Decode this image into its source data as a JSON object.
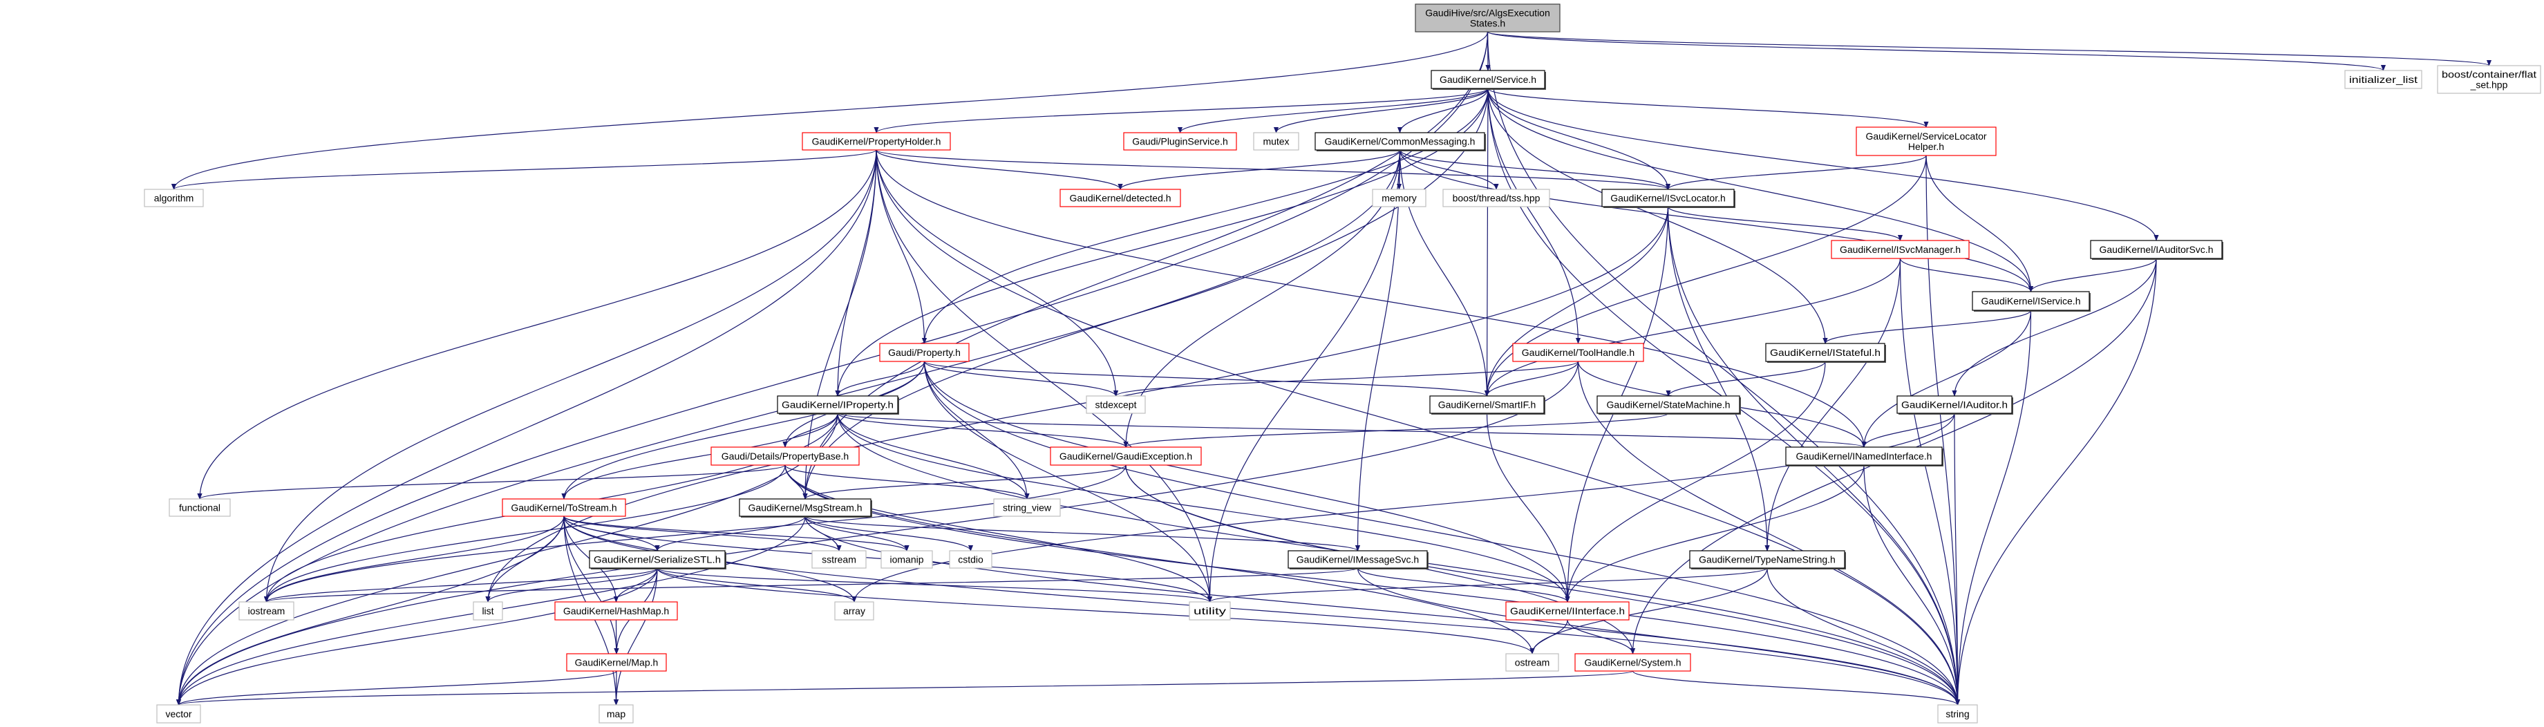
{
  "colors": {
    "edge": "#191970",
    "root_fill": "#bfbfbf",
    "documented_border": "#000000",
    "truncated_border": "#ff0000",
    "external_border": "#bfbfbf"
  },
  "nodes": [
    {
      "id": "root",
      "label": [
        "GaudiHive/src/AlgsExecution",
        "States.h"
      ],
      "kind": "root"
    },
    {
      "id": "service",
      "label": [
        "GaudiKernel/Service.h"
      ],
      "kind": "documented"
    },
    {
      "id": "propertyholder",
      "label": [
        "GaudiKernel/PropertyHolder.h"
      ],
      "kind": "truncated"
    },
    {
      "id": "pluginservice",
      "label": [
        "Gaudi/PluginService.h"
      ],
      "kind": "truncated"
    },
    {
      "id": "mutex",
      "label": [
        "mutex"
      ],
      "kind": "external"
    },
    {
      "id": "commonmessaging",
      "label": [
        "GaudiKernel/CommonMessaging.h"
      ],
      "kind": "documented"
    },
    {
      "id": "algorithm",
      "label": [
        "algorithm"
      ],
      "kind": "external"
    },
    {
      "id": "detected",
      "label": [
        "GaudiKernel/detected.h"
      ],
      "kind": "truncated"
    },
    {
      "id": "memory",
      "label": [
        "memory"
      ],
      "kind": "external"
    },
    {
      "id": "tss",
      "label": [
        "boost/thread/tss.hpp"
      ],
      "kind": "external"
    },
    {
      "id": "isvclocator",
      "label": [
        "GaudiKernel/ISvcLocator.h"
      ],
      "kind": "documented"
    },
    {
      "id": "servicelocatorhelper",
      "label": [
        "GaudiKernel/ServiceLocator",
        "Helper.h"
      ],
      "kind": "truncated"
    },
    {
      "id": "initializer_list",
      "label": [
        "initializer_list"
      ],
      "kind": "external"
    },
    {
      "id": "flat_set",
      "label": [
        "boost/container/flat",
        "_set.hpp"
      ],
      "kind": "external"
    },
    {
      "id": "isvcmanager",
      "label": [
        "GaudiKernel/ISvcManager.h"
      ],
      "kind": "truncated"
    },
    {
      "id": "iauditorsvc",
      "label": [
        "GaudiKernel/IAuditorSvc.h"
      ],
      "kind": "documented"
    },
    {
      "id": "iservice",
      "label": [
        "GaudiKernel/IService.h"
      ],
      "kind": "documented"
    },
    {
      "id": "istateful",
      "label": [
        "GaudiKernel/IStateful.h"
      ],
      "kind": "documented"
    },
    {
      "id": "property",
      "label": [
        "Gaudi/Property.h"
      ],
      "kind": "truncated"
    },
    {
      "id": "toolhandle",
      "label": [
        "GaudiKernel/ToolHandle.h"
      ],
      "kind": "truncated"
    },
    {
      "id": "iproperty",
      "label": [
        "GaudiKernel/IProperty.h"
      ],
      "kind": "documented"
    },
    {
      "id": "stdexcept",
      "label": [
        "stdexcept"
      ],
      "kind": "external"
    },
    {
      "id": "smartif",
      "label": [
        "GaudiKernel/SmartIF.h"
      ],
      "kind": "documented"
    },
    {
      "id": "statemachine",
      "label": [
        "GaudiKernel/StateMachine.h"
      ],
      "kind": "documented"
    },
    {
      "id": "iauditor",
      "label": [
        "GaudiKernel/IAuditor.h"
      ],
      "kind": "documented"
    },
    {
      "id": "propertybase",
      "label": [
        "Gaudi/Details/PropertyBase.h"
      ],
      "kind": "truncated"
    },
    {
      "id": "gaudiexception",
      "label": [
        "GaudiKernel/GaudiException.h"
      ],
      "kind": "truncated"
    },
    {
      "id": "inamedinterface",
      "label": [
        "GaudiKernel/INamedInterface.h"
      ],
      "kind": "documented"
    },
    {
      "id": "functional",
      "label": [
        "functional"
      ],
      "kind": "external"
    },
    {
      "id": "tostream",
      "label": [
        "GaudiKernel/ToStream.h"
      ],
      "kind": "truncated"
    },
    {
      "id": "msgstream",
      "label": [
        "GaudiKernel/MsgStream.h"
      ],
      "kind": "documented"
    },
    {
      "id": "string_view",
      "label": [
        "string_view"
      ],
      "kind": "external"
    },
    {
      "id": "serializestl",
      "label": [
        "GaudiKernel/SerializeSTL.h"
      ],
      "kind": "documented"
    },
    {
      "id": "sstream",
      "label": [
        "sstream"
      ],
      "kind": "external"
    },
    {
      "id": "iomanip",
      "label": [
        "iomanip"
      ],
      "kind": "external"
    },
    {
      "id": "cstdio",
      "label": [
        "cstdio"
      ],
      "kind": "external"
    },
    {
      "id": "imessagesvc",
      "label": [
        "GaudiKernel/IMessageSvc.h"
      ],
      "kind": "documented"
    },
    {
      "id": "typenamestring",
      "label": [
        "GaudiKernel/TypeNameString.h"
      ],
      "kind": "documented"
    },
    {
      "id": "iostream",
      "label": [
        "iostream"
      ],
      "kind": "external"
    },
    {
      "id": "list",
      "label": [
        "list"
      ],
      "kind": "external"
    },
    {
      "id": "hashmap",
      "label": [
        "GaudiKernel/HashMap.h"
      ],
      "kind": "truncated"
    },
    {
      "id": "array",
      "label": [
        "array"
      ],
      "kind": "external"
    },
    {
      "id": "utility",
      "label": [
        "utility"
      ],
      "kind": "external"
    },
    {
      "id": "interface",
      "label": [
        "GaudiKernel/IInterface.h"
      ],
      "kind": "truncated"
    },
    {
      "id": "map_h",
      "label": [
        "GaudiKernel/Map.h"
      ],
      "kind": "truncated"
    },
    {
      "id": "ostream",
      "label": [
        "ostream"
      ],
      "kind": "external"
    },
    {
      "id": "system",
      "label": [
        "GaudiKernel/System.h"
      ],
      "kind": "truncated"
    },
    {
      "id": "vector",
      "label": [
        "vector"
      ],
      "kind": "external"
    },
    {
      "id": "map",
      "label": [
        "map"
      ],
      "kind": "external"
    },
    {
      "id": "string",
      "label": [
        "string"
      ],
      "kind": "external"
    }
  ],
  "edges": [
    [
      "root",
      "service"
    ],
    [
      "root",
      "vector"
    ],
    [
      "root",
      "algorithm"
    ],
    [
      "root",
      "msgstream"
    ],
    [
      "root",
      "initializer_list"
    ],
    [
      "root",
      "flat_set"
    ],
    [
      "root",
      "string"
    ],
    [
      "service",
      "propertyholder"
    ],
    [
      "service",
      "pluginservice"
    ],
    [
      "service",
      "mutex"
    ],
    [
      "service",
      "commonmessaging"
    ],
    [
      "service",
      "isvclocator"
    ],
    [
      "service",
      "servicelocatorhelper"
    ],
    [
      "service",
      "iservice"
    ],
    [
      "service",
      "iauditorsvc"
    ],
    [
      "service",
      "iproperty"
    ],
    [
      "service",
      "property"
    ],
    [
      "service",
      "smartif"
    ],
    [
      "service",
      "toolhandle"
    ],
    [
      "service",
      "istateful"
    ],
    [
      "service",
      "string"
    ],
    [
      "service",
      "vector"
    ],
    [
      "propertyholder",
      "algorithm"
    ],
    [
      "propertyholder",
      "detected"
    ],
    [
      "propertyholder",
      "isvclocator"
    ],
    [
      "propertyholder",
      "property"
    ],
    [
      "propertyholder",
      "iproperty"
    ],
    [
      "propertyholder",
      "stdexcept"
    ],
    [
      "propertyholder",
      "utility"
    ],
    [
      "propertyholder",
      "iostream"
    ],
    [
      "propertyholder",
      "functional"
    ],
    [
      "propertyholder",
      "vector"
    ],
    [
      "propertyholder",
      "string"
    ],
    [
      "propertyholder",
      "msgstream"
    ],
    [
      "propertyholder",
      "inamedinterface"
    ],
    [
      "commonmessaging",
      "detected"
    ],
    [
      "commonmessaging",
      "memory"
    ],
    [
      "commonmessaging",
      "tss"
    ],
    [
      "commonmessaging",
      "isvclocator"
    ],
    [
      "commonmessaging",
      "iservice"
    ],
    [
      "commonmessaging",
      "imessagesvc"
    ],
    [
      "commonmessaging",
      "msgstream"
    ],
    [
      "commonmessaging",
      "smartif"
    ],
    [
      "commonmessaging",
      "gaudiexception"
    ],
    [
      "commonmessaging",
      "utility"
    ],
    [
      "isvclocator",
      "isvcmanager"
    ],
    [
      "isvclocator",
      "smartif"
    ],
    [
      "isvclocator",
      "interface"
    ],
    [
      "isvclocator",
      "typenamestring"
    ],
    [
      "isvclocator",
      "string"
    ],
    [
      "isvclocator",
      "list"
    ],
    [
      "servicelocatorhelper",
      "isvclocator"
    ],
    [
      "servicelocatorhelper",
      "iservice"
    ],
    [
      "servicelocatorhelper",
      "smartif"
    ],
    [
      "servicelocatorhelper",
      "string"
    ],
    [
      "isvcmanager",
      "iservice"
    ],
    [
      "isvcmanager",
      "smartif"
    ],
    [
      "isvcmanager",
      "typenamestring"
    ],
    [
      "isvcmanager",
      "string"
    ],
    [
      "iauditorsvc",
      "iservice"
    ],
    [
      "iauditorsvc",
      "iauditor"
    ],
    [
      "iauditorsvc",
      "system"
    ],
    [
      "iauditorsvc",
      "string"
    ],
    [
      "iservice",
      "istateful"
    ],
    [
      "iservice",
      "inamedinterface"
    ],
    [
      "iservice",
      "string"
    ],
    [
      "istateful",
      "statemachine"
    ],
    [
      "istateful",
      "interface"
    ],
    [
      "statemachine",
      "gaudiexception"
    ],
    [
      "iauditor",
      "inamedinterface"
    ],
    [
      "iauditor",
      "string"
    ],
    [
      "iauditor",
      "array"
    ],
    [
      "property",
      "iproperty"
    ],
    [
      "property",
      "propertybase"
    ],
    [
      "property",
      "tostream"
    ],
    [
      "property",
      "smartif"
    ],
    [
      "property",
      "stdexcept"
    ],
    [
      "property",
      "string_view"
    ],
    [
      "property",
      "utility"
    ],
    [
      "property",
      "string"
    ],
    [
      "property",
      "interface"
    ],
    [
      "toolhandle",
      "vector"
    ],
    [
      "toolhandle",
      "inamedinterface"
    ],
    [
      "toolhandle",
      "stdexcept"
    ],
    [
      "toolhandle",
      "smartif"
    ],
    [
      "toolhandle",
      "string"
    ],
    [
      "iproperty",
      "propertybase"
    ],
    [
      "iproperty",
      "inamedinterface"
    ],
    [
      "iproperty",
      "gaudiexception"
    ],
    [
      "iproperty",
      "tostream"
    ],
    [
      "iproperty",
      "iostream"
    ],
    [
      "iproperty",
      "string_view"
    ],
    [
      "iproperty",
      "string"
    ],
    [
      "iproperty",
      "vector"
    ],
    [
      "iproperty",
      "interface"
    ],
    [
      "propertybase",
      "functional"
    ],
    [
      "propertybase",
      "iostream"
    ],
    [
      "propertybase",
      "string_view"
    ],
    [
      "propertybase",
      "msgstream"
    ],
    [
      "propertybase",
      "utility"
    ],
    [
      "propertybase",
      "string"
    ],
    [
      "propertybase",
      "ostream"
    ],
    [
      "gaudiexception",
      "msgstream"
    ],
    [
      "gaudiexception",
      "system"
    ],
    [
      "gaudiexception",
      "string"
    ],
    [
      "gaudiexception",
      "iostream"
    ],
    [
      "tostream",
      "serializestl"
    ],
    [
      "tostream",
      "hashmap"
    ],
    [
      "tostream",
      "map_h"
    ],
    [
      "tostream",
      "list"
    ],
    [
      "tostream",
      "vector"
    ],
    [
      "tostream",
      "iostream"
    ],
    [
      "tostream",
      "sstream"
    ],
    [
      "tostream",
      "iomanip"
    ],
    [
      "tostream",
      "array"
    ],
    [
      "tostream",
      "map"
    ],
    [
      "tostream",
      "string"
    ],
    [
      "tostream",
      "utility"
    ],
    [
      "msgstream",
      "serializestl"
    ],
    [
      "msgstream",
      "imessagesvc"
    ],
    [
      "msgstream",
      "sstream"
    ],
    [
      "msgstream",
      "iomanip"
    ],
    [
      "msgstream",
      "cstdio"
    ],
    [
      "msgstream",
      "string"
    ],
    [
      "msgstream",
      "vector"
    ],
    [
      "serializestl",
      "iostream"
    ],
    [
      "serializestl",
      "list"
    ],
    [
      "serializestl",
      "hashmap"
    ],
    [
      "serializestl",
      "map_h"
    ],
    [
      "serializestl",
      "array"
    ],
    [
      "serializestl",
      "map"
    ],
    [
      "serializestl",
      "vector"
    ],
    [
      "serializestl",
      "utility"
    ],
    [
      "serializestl",
      "ostream"
    ],
    [
      "hashmap",
      "map_h"
    ],
    [
      "map_h",
      "map"
    ],
    [
      "map_h",
      "vector"
    ],
    [
      "imessagesvc",
      "interface"
    ],
    [
      "imessagesvc",
      "iostream"
    ],
    [
      "imessagesvc",
      "string"
    ],
    [
      "typenamestring",
      "string"
    ],
    [
      "typenamestring",
      "ostream"
    ],
    [
      "typenamestring",
      "utility"
    ],
    [
      "interface",
      "ostream"
    ],
    [
      "interface",
      "system"
    ],
    [
      "system",
      "vector"
    ],
    [
      "system",
      "string"
    ],
    [
      "inamedinterface",
      "interface"
    ],
    [
      "inamedinterface",
      "string"
    ],
    [
      "smartif",
      "interface"
    ]
  ]
}
